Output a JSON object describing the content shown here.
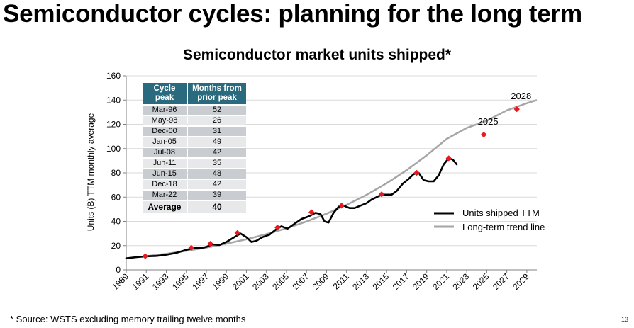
{
  "slide": {
    "title": "Semiconductor cycles: planning for the long term",
    "source_note": "* Source: WSTS excluding memory trailing twelve months",
    "page_number": "13"
  },
  "table": {
    "headers": [
      "Cycle peak",
      "Months from prior peak"
    ],
    "rows": [
      {
        "peak": "Mar-96",
        "months": "52"
      },
      {
        "peak": "May-98",
        "months": "26"
      },
      {
        "peak": "Dec-00",
        "months": "31"
      },
      {
        "peak": "Jan-05",
        "months": "49"
      },
      {
        "peak": "Jul-08",
        "months": "42"
      },
      {
        "peak": "Jun-11",
        "months": "35"
      },
      {
        "peak": "Jun-15",
        "months": "48"
      },
      {
        "peak": "Dec-18",
        "months": "42"
      },
      {
        "peak": "Mar-22",
        "months": "39"
      }
    ],
    "average": {
      "label": "Average",
      "value": "40"
    }
  },
  "chart_data": {
    "type": "line",
    "title": "Semiconductor market units shipped*",
    "xlabel": "",
    "ylabel": "Units (B) TTM monthly average",
    "xlim": [
      1989,
      2030
    ],
    "ylim": [
      0,
      160
    ],
    "x_ticks": [
      "1989",
      "1991",
      "1993",
      "1995",
      "1997",
      "1999",
      "2001",
      "2003",
      "2005",
      "2007",
      "2009",
      "2011",
      "2013",
      "2015",
      "2017",
      "2019",
      "2021",
      "2023",
      "2025",
      "2027",
      "2029"
    ],
    "y_ticks": [
      0,
      20,
      40,
      60,
      80,
      100,
      120,
      140,
      160
    ],
    "legend": [
      "Units shipped TTM",
      "Long-term trend line"
    ],
    "series": [
      {
        "name": "Units shipped TTM",
        "color": "#000000",
        "points": [
          [
            1989,
            9.5
          ],
          [
            1990,
            10.5
          ],
          [
            1991,
            11.2
          ],
          [
            1992,
            11.5
          ],
          [
            1993,
            12.5
          ],
          [
            1994,
            14
          ],
          [
            1995,
            16.5
          ],
          [
            1995.8,
            18
          ],
          [
            1996.5,
            18
          ],
          [
            1997,
            19
          ],
          [
            1997.6,
            21
          ],
          [
            1998.3,
            20.5
          ],
          [
            1999,
            23
          ],
          [
            1999.8,
            27
          ],
          [
            2000.4,
            30
          ],
          [
            2001,
            27
          ],
          [
            2001.5,
            23
          ],
          [
            2002,
            24
          ],
          [
            2002.6,
            27
          ],
          [
            2003.3,
            29
          ],
          [
            2003.9,
            33
          ],
          [
            2004.5,
            36
          ],
          [
            2005.1,
            34
          ],
          [
            2005.8,
            38
          ],
          [
            2006.5,
            42
          ],
          [
            2007.2,
            44
          ],
          [
            2007.9,
            47
          ],
          [
            2008.4,
            46
          ],
          [
            2008.8,
            40
          ],
          [
            2009.2,
            39
          ],
          [
            2009.7,
            47
          ],
          [
            2010.2,
            52
          ],
          [
            2010.7,
            53
          ],
          [
            2011.3,
            51
          ],
          [
            2011.8,
            51
          ],
          [
            2012.4,
            53
          ],
          [
            2013,
            55
          ],
          [
            2013.5,
            58
          ],
          [
            2014,
            60
          ],
          [
            2014.5,
            62
          ],
          [
            2015,
            62
          ],
          [
            2015.5,
            62
          ],
          [
            2016,
            65
          ],
          [
            2016.6,
            71
          ],
          [
            2017.2,
            75
          ],
          [
            2017.7,
            79
          ],
          [
            2018.2,
            80
          ],
          [
            2018.7,
            74
          ],
          [
            2019.2,
            73
          ],
          [
            2019.7,
            73
          ],
          [
            2020.2,
            78
          ],
          [
            2020.7,
            87
          ],
          [
            2021.2,
            92
          ],
          [
            2021.6,
            91
          ],
          [
            2022,
            87
          ]
        ]
      },
      {
        "name": "Long-term trend line",
        "color": "#a6a6a6",
        "points": [
          [
            1989,
            9.5
          ],
          [
            1991,
            11.3
          ],
          [
            1993,
            13.3
          ],
          [
            1995,
            15.7
          ],
          [
            1997,
            18.4
          ],
          [
            1999,
            21.6
          ],
          [
            2001,
            25.2
          ],
          [
            2003,
            29.5
          ],
          [
            2005,
            34.3
          ],
          [
            2007,
            39.9
          ],
          [
            2009,
            46.3
          ],
          [
            2011,
            53.6
          ],
          [
            2013,
            61.9
          ],
          [
            2015,
            71.4
          ],
          [
            2017,
            82.2
          ],
          [
            2019,
            94.4
          ],
          [
            2021,
            108
          ],
          [
            2023,
            117
          ],
          [
            2025,
            123
          ],
          [
            2027,
            131.5
          ],
          [
            2029,
            137.4
          ],
          [
            2030,
            140
          ]
        ]
      }
    ],
    "markers": {
      "name": "Cycle peaks",
      "color": "#e8191f",
      "points": [
        [
          1990.9,
          11.3
        ],
        [
          1995.5,
          18.2
        ],
        [
          1997.4,
          21.5
        ],
        [
          2000.1,
          30.5
        ],
        [
          2004.1,
          35
        ],
        [
          2007.5,
          47.5
        ],
        [
          2010.5,
          53
        ],
        [
          2014.5,
          62.3
        ],
        [
          2018,
          80
        ],
        [
          2021.2,
          92
        ]
      ]
    },
    "projections": [
      {
        "label": "2025",
        "x": 2024.7,
        "y": 111.5
      },
      {
        "label": "2028",
        "x": 2028,
        "y": 132.5
      }
    ]
  }
}
